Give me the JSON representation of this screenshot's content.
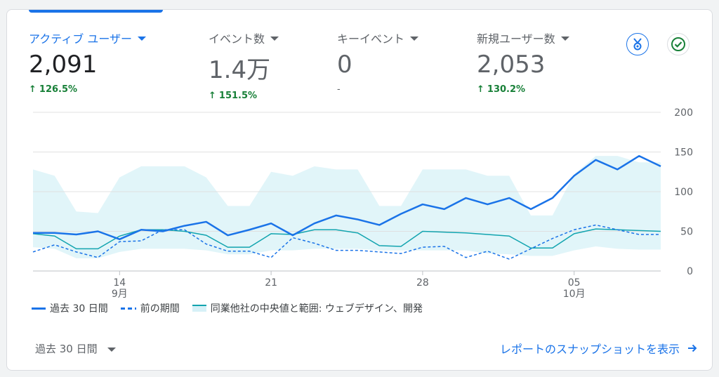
{
  "metrics": [
    {
      "title": "アクティブ ユーザー",
      "value": "2,091",
      "change": "126.5%",
      "arrow": "↑"
    },
    {
      "title": "イベント数",
      "value": "1.4万",
      "change": "151.5%",
      "arrow": "↑"
    },
    {
      "title": "キーイベント",
      "value": "0",
      "change": "-",
      "arrow": ""
    },
    {
      "title": "新規ユーザー数",
      "value": "2,053",
      "change": "130.2%",
      "arrow": "↑"
    }
  ],
  "icons": {
    "insights": "insights-badge-icon",
    "check": "check-circle-icon"
  },
  "colors": {
    "primary": "#1a73e8",
    "band": "#d7f1f7",
    "benchmark": "#12a4af",
    "positive": "#188038"
  },
  "chart_data": {
    "type": "line",
    "x_tick_labels": [
      "14",
      "21",
      "28",
      "05"
    ],
    "x_month_labels": [
      "9月",
      "10月"
    ],
    "y_tick_labels": [
      "200",
      "150",
      "100",
      "50",
      "0"
    ],
    "ylim": [
      0,
      200
    ],
    "grid": true,
    "legend_position": "bottom-left",
    "series": [
      {
        "name": "過去 30 日間",
        "style": "solid",
        "values": [
          48,
          48,
          46,
          50,
          40,
          52,
          50,
          57,
          62,
          45,
          52,
          60,
          45,
          60,
          70,
          65,
          58,
          72,
          84,
          78,
          92,
          84,
          92,
          78,
          92,
          120,
          140,
          128,
          145,
          132
        ]
      },
      {
        "name": "前の期間",
        "style": "dashed",
        "values": [
          24,
          33,
          24,
          17,
          37,
          38,
          52,
          52,
          34,
          25,
          25,
          17,
          42,
          35,
          26,
          26,
          24,
          22,
          30,
          31,
          17,
          25,
          15,
          28,
          41,
          52,
          58,
          52,
          46,
          46
        ]
      },
      {
        "name": "同業他社の中央値と範囲: ウェブデザイン、開発",
        "style": "band",
        "values": [
          47,
          44,
          28,
          28,
          44,
          52,
          52,
          50,
          45,
          30,
          30,
          47,
          46,
          52,
          52,
          48,
          32,
          31,
          50,
          49,
          48,
          46,
          44,
          29,
          29,
          47,
          53,
          52,
          51,
          50
        ],
        "upper": [
          128,
          120,
          75,
          73,
          118,
          132,
          132,
          132,
          118,
          82,
          82,
          125,
          120,
          132,
          128,
          128,
          82,
          82,
          128,
          128,
          128,
          120,
          120,
          70,
          70,
          122,
          145,
          145,
          137,
          137
        ],
        "lower": [
          30,
          28,
          16,
          16,
          24,
          28,
          28,
          28,
          26,
          21,
          21,
          26,
          26,
          28,
          28,
          28,
          26,
          26,
          26,
          26,
          26,
          22,
          21,
          19,
          19,
          26,
          31,
          28,
          27,
          27
        ]
      }
    ]
  },
  "footer": {
    "range_label": "過去 30 日間",
    "snapshot_label": "レポートのスナップショットを表示"
  }
}
